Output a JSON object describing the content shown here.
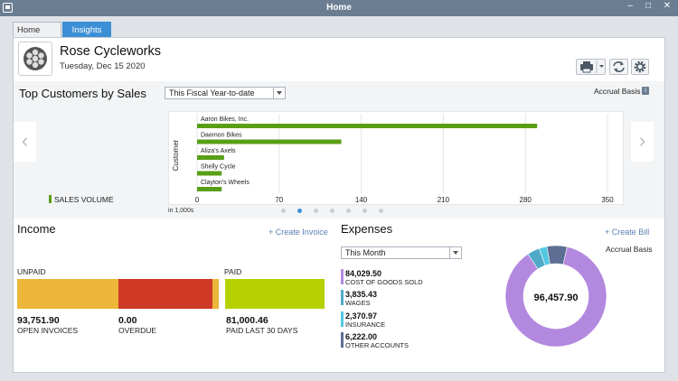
{
  "window": {
    "title": "Home"
  },
  "tabs": [
    {
      "label": "Home Pa..."
    },
    {
      "label": "Insights"
    }
  ],
  "company": {
    "name": "Rose Cycleworks",
    "date": "Tuesday, Dec 15 2020"
  },
  "top_customers": {
    "title": "Top Customers by Sales",
    "period": "This Fiscal Year-to-date",
    "basis": "Accrual Basis",
    "legend": "SALES VOLUME",
    "units_note": "in 1,000s",
    "ylabel": "Customer",
    "pager": {
      "count": 7,
      "active": 1
    }
  },
  "chart_data": {
    "type": "bar",
    "orientation": "horizontal",
    "categories": [
      "Aaron Bikes, Inc.",
      "Daemon Bikes",
      "Aliza's Axels",
      "Shelly Cycle",
      "Clayton's Wheels"
    ],
    "values": [
      290,
      123,
      23,
      21,
      21
    ],
    "ticks": [
      "0",
      "70",
      "140",
      "210",
      "280",
      "350"
    ],
    "xlim": [
      0,
      350
    ],
    "ylabel": "Customer",
    "grid": true,
    "legend": "SALES VOLUME",
    "color": "#5a9e16"
  },
  "income": {
    "title": "Income",
    "create_link": "+ Create Invoice",
    "unpaid_label": "UNPAID",
    "paid_label": "PAID",
    "open_invoices": {
      "value": "93,751.90",
      "label": "OPEN INVOICES",
      "color": "#ebb63a"
    },
    "overdue": {
      "value": "0.00",
      "label": "OVERDUE",
      "color": "#cf3a26"
    },
    "paid_last_30": {
      "value": "81,000.46",
      "label": "PAID LAST 30 DAYS",
      "color": "#b6d100"
    }
  },
  "expenses": {
    "title": "Expenses",
    "create_link": "+ Create Bill",
    "period": "This Month",
    "basis": "Accrual Basis",
    "total": "96,457.90",
    "items": [
      {
        "value": "84,029.50",
        "label": "COST OF GOODS SOLD",
        "amount": 84029.5,
        "color": "#b389df"
      },
      {
        "value": "3,835.43",
        "label": "WAGES",
        "amount": 3835.43,
        "color": "#4faac9"
      },
      {
        "value": "2,370.97",
        "label": "INSURANCE",
        "amount": 2370.97,
        "color": "#52c8e0"
      },
      {
        "value": "6,222.00",
        "label": "OTHER ACCOUNTS",
        "amount": 6222.0,
        "color": "#5c6f92"
      }
    ]
  }
}
